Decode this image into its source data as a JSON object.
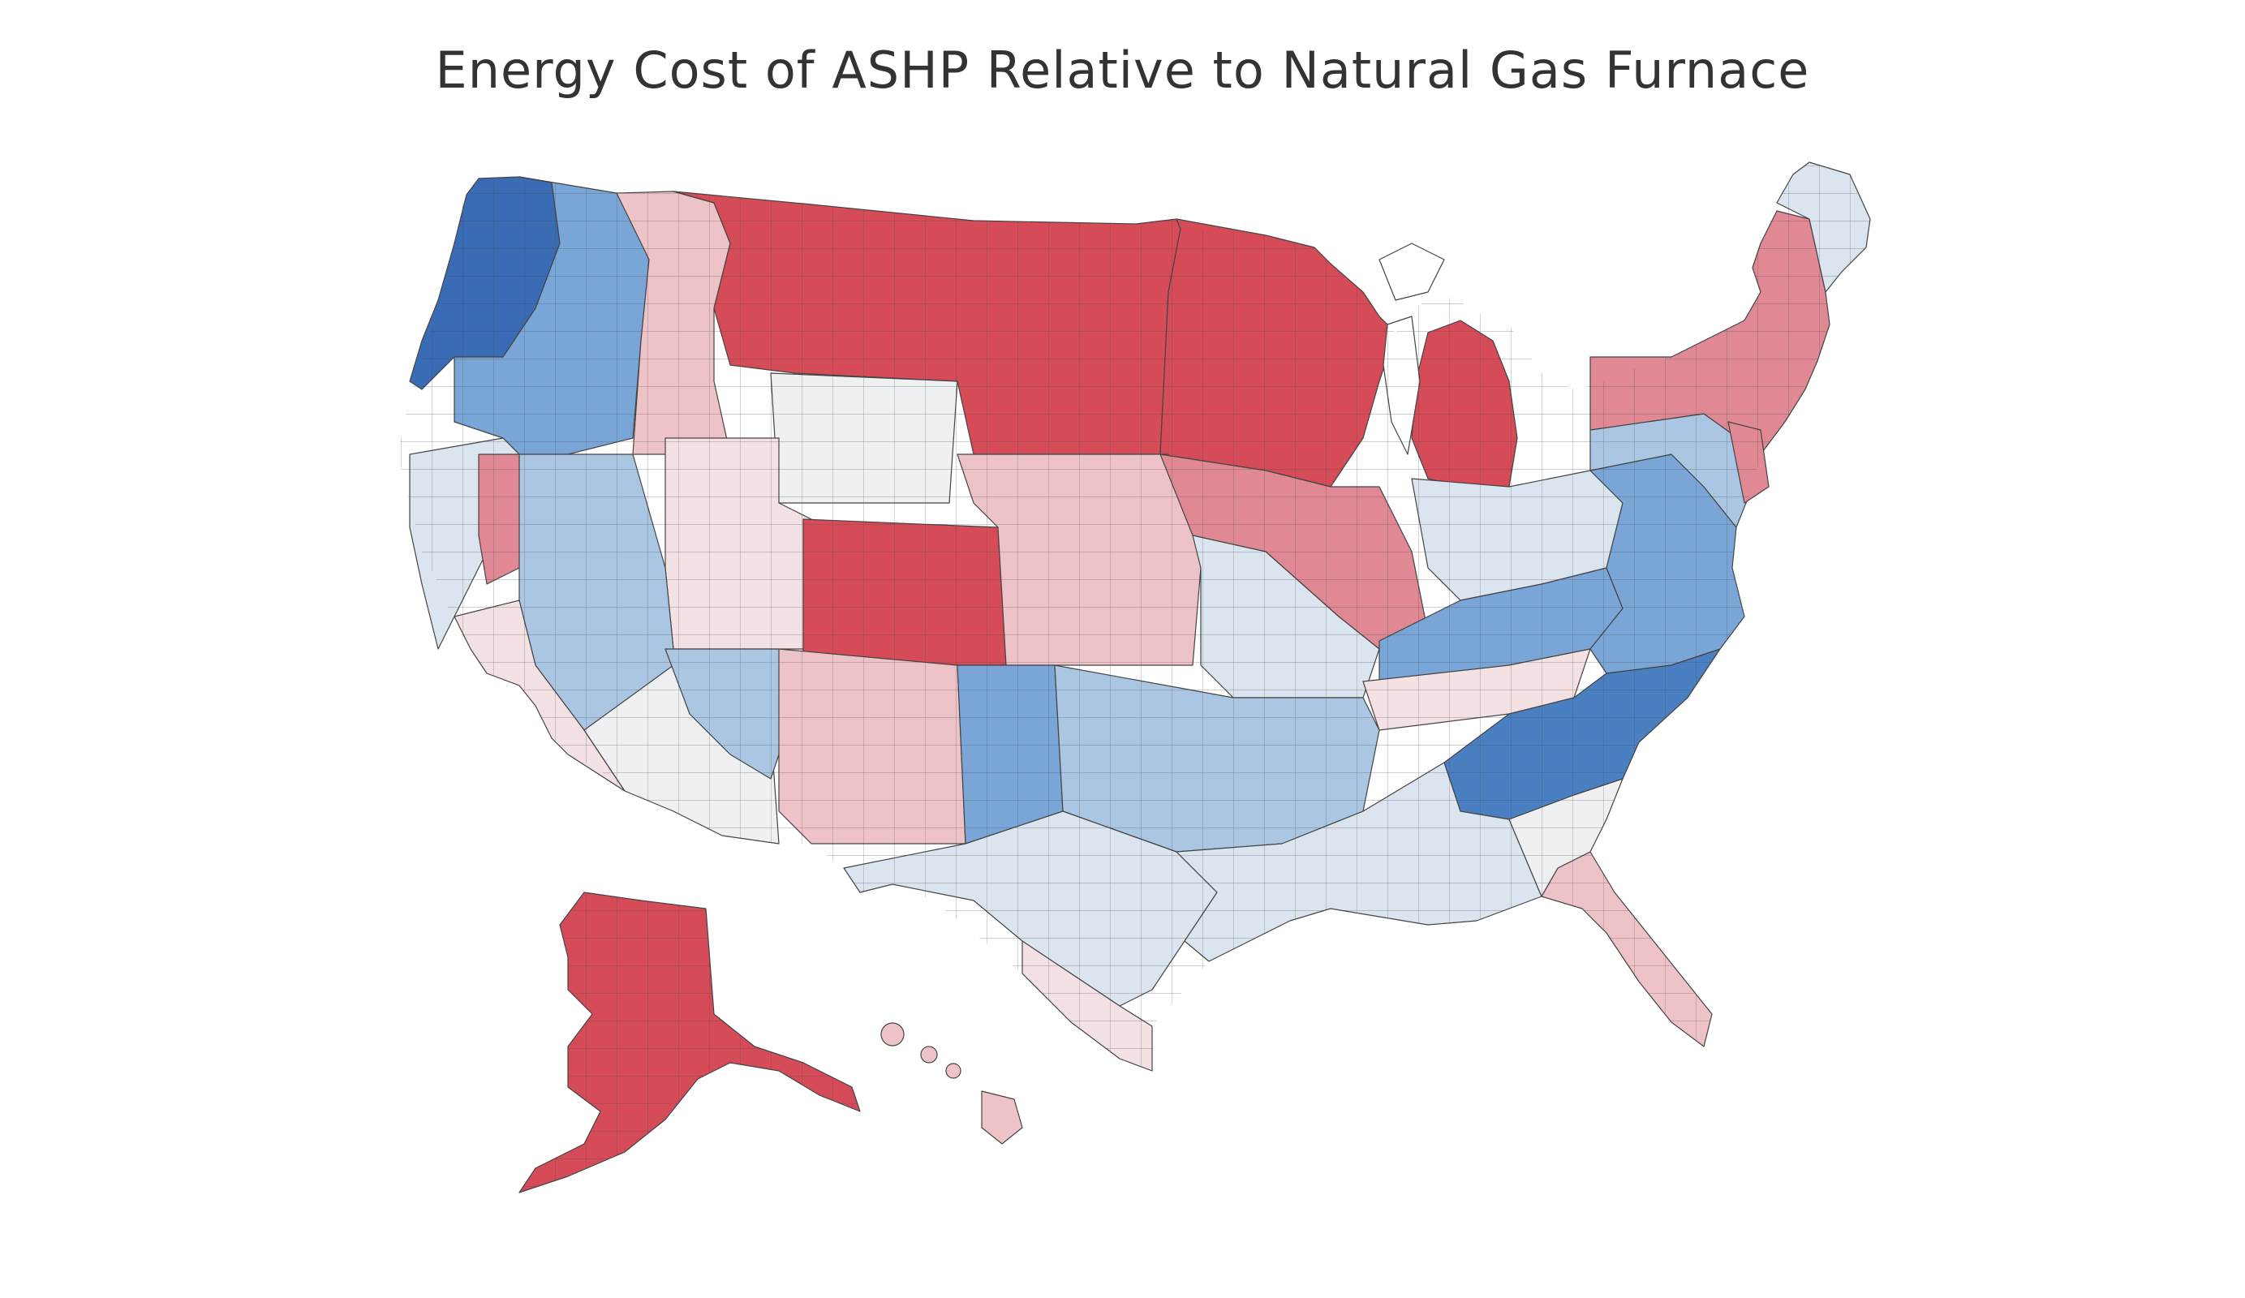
{
  "title": "Energy Cost of ASHP Relative to Natural Gas Furnace",
  "colors": {
    "strong_red": "#d64b58",
    "red": "#e08893",
    "light_red": "#eec3c8",
    "pale_red": "#f4e1e3",
    "neutral": "#eef0f2",
    "pale_blue": "#dbe5f0",
    "light_blue": "#aac6e3",
    "blue": "#79a6d6",
    "strong_blue": "#4a7fc2",
    "deep_blue": "#3a6cb5",
    "outline": "#444444"
  },
  "regions": [
    {
      "name": "pacific-northwest-coast",
      "color": "deep_blue"
    },
    {
      "name": "pacific-northwest-interior",
      "color": "blue"
    },
    {
      "name": "idaho-montana-west",
      "color": "light_red"
    },
    {
      "name": "northern-plains",
      "color": "strong_red"
    },
    {
      "name": "upper-midwest",
      "color": "strong_red"
    },
    {
      "name": "michigan",
      "color": "strong_red"
    },
    {
      "name": "wyoming",
      "color": "neutral"
    },
    {
      "name": "utah",
      "color": "pale_red"
    },
    {
      "name": "colorado",
      "color": "strong_red"
    },
    {
      "name": "northern-california",
      "color": "pale_blue"
    },
    {
      "name": "sierra-nevada",
      "color": "red"
    },
    {
      "name": "nevada",
      "color": "light_blue"
    },
    {
      "name": "southern-california",
      "color": "pale_red"
    },
    {
      "name": "arizona",
      "color": "neutral"
    },
    {
      "name": "arizona-east",
      "color": "light_blue"
    },
    {
      "name": "new-mexico",
      "color": "light_red"
    },
    {
      "name": "central-plains",
      "color": "light_red"
    },
    {
      "name": "iowa-illinois",
      "color": "red"
    },
    {
      "name": "missouri",
      "color": "pale_blue"
    },
    {
      "name": "ohio-indiana",
      "color": "pale_blue"
    },
    {
      "name": "kentucky",
      "color": "blue"
    },
    {
      "name": "tennessee",
      "color": "pale_red"
    },
    {
      "name": "appalachia-virginia",
      "color": "blue"
    },
    {
      "name": "carolinas-georgia",
      "color": "strong_blue"
    },
    {
      "name": "oklahoma-panhandle",
      "color": "blue"
    },
    {
      "name": "oklahoma-arkansas",
      "color": "light_blue"
    },
    {
      "name": "texas",
      "color": "pale_blue"
    },
    {
      "name": "south-texas",
      "color": "pale_red"
    },
    {
      "name": "gulf-coast",
      "color": "pale_blue"
    },
    {
      "name": "florida",
      "color": "light_red"
    },
    {
      "name": "southeast-coast",
      "color": "neutral"
    },
    {
      "name": "pennsylvania-mid-atlantic",
      "color": "light_blue"
    },
    {
      "name": "new-york-new-england",
      "color": "red"
    },
    {
      "name": "maine",
      "color": "pale_blue"
    },
    {
      "name": "new-jersey",
      "color": "red"
    },
    {
      "name": "alaska",
      "color": "strong_red"
    },
    {
      "name": "hawaii",
      "color": "light_red"
    }
  ]
}
